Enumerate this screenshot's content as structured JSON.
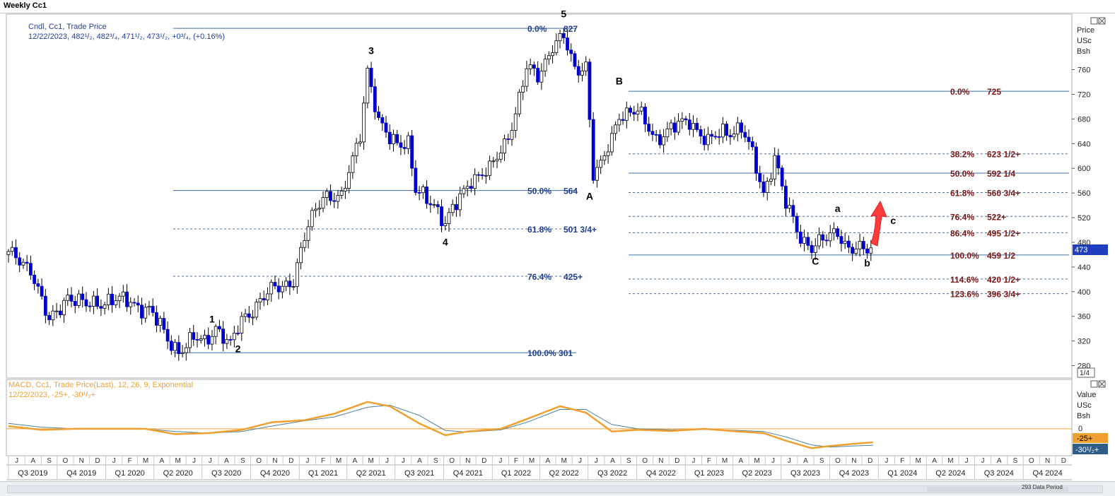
{
  "window": {
    "title": "Weekly Cc1"
  },
  "price_panel": {
    "header_line1": "Cndl, Cc1, Trade Price",
    "header_line2": "12/22/2023, 482¹/₂, 482³/₄, 471¹/₂, 473¹/₂, +0³/₄, (+0.16%)",
    "axis_title": [
      "Price",
      "USc",
      "Bsh"
    ],
    "zoom_label": "1/4",
    "last_price": "473",
    "y_ticks": [
      280,
      320,
      360,
      400,
      440,
      480,
      520,
      560,
      600,
      640,
      680,
      720,
      760
    ],
    "colors": {
      "up": "#ffffff",
      "down": "#0000cc",
      "fib_line": "#3f6fa8",
      "fib_text_left": "#1f3f8f",
      "fib_text_right": "#7b1515",
      "arrow": "#ff3b3b"
    }
  },
  "macd_panel": {
    "header_line1": "MACD, Cc1, Trade Price(Last),  12, 26, 9, Exponential",
    "header_line2": "12/22/2023, -25+, -30¹/₂+",
    "axis_title": [
      "Value",
      "USc",
      "Bsh"
    ],
    "zero_label": "0",
    "macd_last": "-25+",
    "signal_last": "-30¹/₂+",
    "colors": {
      "macd": "#f0a030",
      "signal": "#4a7f9a",
      "zero": "#f0a030"
    }
  },
  "x_axis": {
    "months": [
      "J",
      "A",
      "S",
      "O",
      "N",
      "D",
      "J",
      "F",
      "M",
      "A",
      "M",
      "J",
      "J",
      "A",
      "S",
      "O",
      "N",
      "D",
      "J",
      "F",
      "M",
      "A",
      "M",
      "J",
      "J",
      "A",
      "S",
      "O",
      "N",
      "D",
      "J",
      "F",
      "M",
      "A",
      "M",
      "J",
      "J",
      "A",
      "S",
      "O",
      "N",
      "D",
      "J",
      "F",
      "M",
      "A",
      "M",
      "J",
      "J",
      "A",
      "S",
      "O",
      "N",
      "D",
      "J",
      "F",
      "M",
      "A",
      "M",
      "J",
      "J",
      "A",
      "S",
      "O",
      "N",
      "D"
    ],
    "quarters": [
      "Q3 2019",
      "Q4 2019",
      "Q1 2020",
      "Q2 2020",
      "Q3 2020",
      "Q4 2020",
      "Q1 2021",
      "Q2 2021",
      "Q3 2021",
      "Q4 2021",
      "Q1 2022",
      "Q2 2022",
      "Q3 2022",
      "Q4 2022",
      "Q1 2023",
      "Q2 2023",
      "Q3 2023",
      "Q4 2023",
      "Q1 2024",
      "Q2 2024",
      "Q3 2024",
      "Q4 2024"
    ]
  },
  "status": {
    "data_period": "293 Data Period"
  },
  "chart_data": {
    "type": "candlestick",
    "x_range": [
      "2019-07",
      "2024-12"
    ],
    "ylim": [
      260,
      850
    ],
    "fib_left": [
      {
        "label": "0.0%",
        "value_label": "827",
        "price": 827,
        "style": "solid"
      },
      {
        "label": "50.0%",
        "value_label": "564",
        "price": 564,
        "style": "solid"
      },
      {
        "label": "61.8%",
        "value_label": "501 3/4+",
        "price": 501.75,
        "style": "dashed"
      },
      {
        "label": "76.4%",
        "value_label": "425+",
        "price": 425,
        "style": "dashed"
      },
      {
        "label": "100.0% 301",
        "value_label": "",
        "price": 301,
        "style": "solid"
      }
    ],
    "fib_right": [
      {
        "label": "0.0%",
        "value_label": "725",
        "price": 725,
        "style": "solid"
      },
      {
        "label": "38.2%",
        "value_label": "623 1/2+",
        "price": 623.5,
        "style": "dashed"
      },
      {
        "label": "50.0%",
        "value_label": "592 1/4",
        "price": 592.25,
        "style": "solid"
      },
      {
        "label": "61.8%",
        "value_label": "560 3/4+",
        "price": 560.75,
        "style": "dashed"
      },
      {
        "label": "76.4%",
        "value_label": "522+",
        "price": 522,
        "style": "dashed"
      },
      {
        "label": "86.4%",
        "value_label": "495 1/2+",
        "price": 495.5,
        "style": "dashed"
      },
      {
        "label": "100.0%",
        "value_label": "459 1/2",
        "price": 459.5,
        "style": "solid"
      },
      {
        "label": "114.6%",
        "value_label": "420 1/2+",
        "price": 420.5,
        "style": "dashed"
      },
      {
        "label": "123.6%",
        "value_label": "396 3/4+",
        "price": 396.75,
        "style": "dashed"
      }
    ],
    "wave_labels": [
      {
        "text": "1",
        "date": "2020-07-20",
        "price": 350
      },
      {
        "text": "2",
        "date": "2020-09-07",
        "price": 302
      },
      {
        "text": "3",
        "date": "2021-05-17",
        "price": 785
      },
      {
        "text": "4",
        "date": "2021-10-04",
        "price": 475
      },
      {
        "text": "5",
        "date": "2022-05-16",
        "price": 845
      },
      {
        "text": "A",
        "date": "2022-07-04",
        "price": 549
      },
      {
        "text": "B",
        "date": "2022-08-29",
        "price": 736
      },
      {
        "text": "C",
        "date": "2023-09-04",
        "price": 444
      },
      {
        "text": "a",
        "date": "2023-10-16",
        "price": 529
      },
      {
        "text": "b",
        "date": "2023-12-11",
        "price": 441
      },
      {
        "text": "c",
        "date": "2024-01-29",
        "price": 510
      }
    ],
    "price_path": [
      [
        "2019-07-01",
        460
      ],
      [
        "2019-08-12",
        440
      ],
      [
        "2019-09-16",
        348
      ],
      [
        "2019-10-21",
        395
      ],
      [
        "2019-11-25",
        376
      ],
      [
        "2020-01-06",
        388
      ],
      [
        "2020-02-17",
        382
      ],
      [
        "2020-03-23",
        372
      ],
      [
        "2020-04-27",
        322
      ],
      [
        "2020-05-18",
        306
      ],
      [
        "2020-06-15",
        322
      ],
      [
        "2020-07-06",
        318
      ],
      [
        "2020-07-27",
        345
      ],
      [
        "2020-08-24",
        310
      ],
      [
        "2020-09-14",
        355
      ],
      [
        "2020-10-19",
        385
      ],
      [
        "2020-11-16",
        405
      ],
      [
        "2020-12-21",
        420
      ],
      [
        "2021-01-18",
        505
      ],
      [
        "2021-02-15",
        560
      ],
      [
        "2021-03-22",
        548
      ],
      [
        "2021-04-26",
        660
      ],
      [
        "2021-05-10",
        760
      ],
      [
        "2021-05-31",
        670
      ],
      [
        "2021-06-21",
        650
      ],
      [
        "2021-07-26",
        640
      ],
      [
        "2021-08-09",
        560
      ],
      [
        "2021-09-13",
        545
      ],
      [
        "2021-10-04",
        510
      ],
      [
        "2021-10-25",
        540
      ],
      [
        "2021-11-22",
        585
      ],
      [
        "2021-12-27",
        595
      ],
      [
        "2022-01-24",
        640
      ],
      [
        "2022-02-14",
        690
      ],
      [
        "2022-03-07",
        760
      ],
      [
        "2022-03-28",
        750
      ],
      [
        "2022-04-25",
        800
      ],
      [
        "2022-05-16",
        810
      ],
      [
        "2022-06-06",
        760
      ],
      [
        "2022-06-27",
        770
      ],
      [
        "2022-07-11",
        590
      ],
      [
        "2022-07-25",
        600
      ],
      [
        "2022-08-15",
        650
      ],
      [
        "2022-08-29",
        690
      ],
      [
        "2022-10-03",
        690
      ],
      [
        "2022-11-07",
        650
      ],
      [
        "2022-12-12",
        665
      ],
      [
        "2023-01-09",
        680
      ],
      [
        "2023-02-13",
        640
      ],
      [
        "2023-03-13",
        660
      ],
      [
        "2023-04-17",
        665
      ],
      [
        "2023-05-08",
        620
      ],
      [
        "2023-05-29",
        560
      ],
      [
        "2023-06-19",
        620
      ],
      [
        "2023-07-10",
        540
      ],
      [
        "2023-08-07",
        490
      ],
      [
        "2023-08-28",
        473
      ],
      [
        "2023-09-18",
        480
      ],
      [
        "2023-10-16",
        500
      ],
      [
        "2023-11-06",
        470
      ],
      [
        "2023-12-04",
        465
      ],
      [
        "2023-12-22",
        473
      ]
    ],
    "macd": {
      "ylim": [
        -50,
        55
      ],
      "macd_path": [
        [
          "2019-07-01",
          5
        ],
        [
          "2019-09-02",
          -2
        ],
        [
          "2019-11-04",
          0
        ],
        [
          "2020-01-13",
          0
        ],
        [
          "2020-03-16",
          0
        ],
        [
          "2020-05-11",
          -10
        ],
        [
          "2020-07-13",
          -8
        ],
        [
          "2020-09-14",
          -2
        ],
        [
          "2020-11-09",
          12
        ],
        [
          "2021-01-11",
          16
        ],
        [
          "2021-03-08",
          28
        ],
        [
          "2021-05-10",
          50
        ],
        [
          "2021-06-21",
          42
        ],
        [
          "2021-08-16",
          10
        ],
        [
          "2021-10-04",
          -12
        ],
        [
          "2021-11-15",
          -5
        ],
        [
          "2022-01-17",
          0
        ],
        [
          "2022-03-07",
          18
        ],
        [
          "2022-05-09",
          42
        ],
        [
          "2022-06-27",
          30
        ],
        [
          "2022-08-15",
          -5
        ],
        [
          "2022-10-03",
          -2
        ],
        [
          "2022-12-05",
          -4
        ],
        [
          "2023-02-06",
          0
        ],
        [
          "2023-04-10",
          -5
        ],
        [
          "2023-05-29",
          -8
        ],
        [
          "2023-07-10",
          -22
        ],
        [
          "2023-08-28",
          -36
        ],
        [
          "2023-10-02",
          -32
        ],
        [
          "2023-11-13",
          -28
        ],
        [
          "2023-12-22",
          -25
        ]
      ],
      "signal_path": [
        [
          "2019-07-01",
          10
        ],
        [
          "2019-09-02",
          3
        ],
        [
          "2019-11-04",
          0
        ],
        [
          "2020-01-13",
          0
        ],
        [
          "2020-03-16",
          0
        ],
        [
          "2020-05-11",
          -5
        ],
        [
          "2020-07-13",
          -8
        ],
        [
          "2020-09-14",
          -5
        ],
        [
          "2020-11-09",
          5
        ],
        [
          "2021-01-11",
          15
        ],
        [
          "2021-03-08",
          22
        ],
        [
          "2021-05-10",
          40
        ],
        [
          "2021-06-21",
          44
        ],
        [
          "2021-08-16",
          25
        ],
        [
          "2021-10-04",
          -3
        ],
        [
          "2021-11-15",
          -6
        ],
        [
          "2022-01-17",
          -2
        ],
        [
          "2022-03-07",
          12
        ],
        [
          "2022-05-09",
          36
        ],
        [
          "2022-06-27",
          36
        ],
        [
          "2022-08-15",
          8
        ],
        [
          "2022-10-03",
          0
        ],
        [
          "2022-12-05",
          -2
        ],
        [
          "2023-02-06",
          -1
        ],
        [
          "2023-04-10",
          -3
        ],
        [
          "2023-05-29",
          -5
        ],
        [
          "2023-07-10",
          -15
        ],
        [
          "2023-08-28",
          -30
        ],
        [
          "2023-10-02",
          -34
        ],
        [
          "2023-11-13",
          -32
        ],
        [
          "2023-12-22",
          -30.5
        ]
      ]
    }
  }
}
